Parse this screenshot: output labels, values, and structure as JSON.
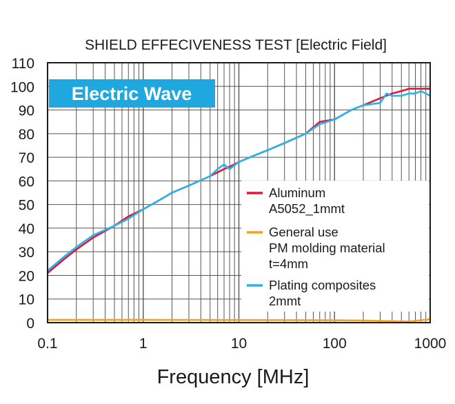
{
  "chart_data": {
    "type": "line",
    "title": "SHIELD EFFECIVENESS TEST [Electric Field]",
    "badge": "Electric Wave",
    "xlabel": "Frequency [MHz]",
    "ylabel": "",
    "x_scale": "log",
    "xlim": [
      0.1,
      1000
    ],
    "ylim": [
      0,
      110
    ],
    "grid": true,
    "legend_position": "right",
    "x_ticks": [
      "0.1",
      "1",
      "10",
      "100",
      "1000"
    ],
    "y_ticks": [
      "0",
      "10",
      "20",
      "30",
      "40",
      "50",
      "60",
      "70",
      "80",
      "90",
      "100",
      "110"
    ],
    "series": [
      {
        "name_lines": [
          "Aluminum",
          "A5052_1mmt"
        ],
        "color": "#e0163c",
        "x": [
          0.1,
          0.15,
          0.2,
          0.3,
          0.5,
          0.7,
          1,
          1.5,
          2,
          3,
          5,
          7,
          8,
          10,
          15,
          20,
          30,
          50,
          70,
          100,
          150,
          200,
          300,
          400,
          500,
          600,
          700,
          800,
          900,
          1000
        ],
        "y": [
          21,
          27,
          31,
          36,
          41,
          45,
          48,
          52,
          55,
          58,
          62,
          65,
          66,
          68,
          71,
          73,
          76,
          80,
          85,
          86,
          90,
          92,
          95,
          97,
          98,
          99,
          99,
          99,
          99,
          99
        ]
      },
      {
        "name_lines": [
          "General use",
          "PM molding material",
          "t=4mm"
        ],
        "color": "#f5a01e",
        "x": [
          0.1,
          1,
          10,
          100,
          200,
          400,
          600,
          800,
          1000
        ],
        "y": [
          1.2,
          1.2,
          1.1,
          1.0,
          0.9,
          0.6,
          0.5,
          1.0,
          1.5
        ]
      },
      {
        "name_lines": [
          "Plating composites",
          "2mmt"
        ],
        "color": "#27b4e8",
        "x": [
          0.1,
          0.15,
          0.2,
          0.3,
          0.5,
          0.7,
          1,
          1.5,
          2,
          3,
          5,
          6,
          7,
          8,
          10,
          15,
          20,
          30,
          50,
          70,
          100,
          150,
          200,
          300,
          350,
          400,
          500,
          600,
          700,
          800,
          900,
          1000
        ],
        "y": [
          22,
          28,
          32,
          37,
          41,
          44,
          48,
          52,
          55,
          58,
          62,
          65,
          67,
          65,
          68,
          71,
          73,
          76,
          80,
          84,
          86,
          90,
          92,
          93,
          97,
          96,
          96,
          97,
          97,
          98,
          97,
          96
        ]
      }
    ]
  }
}
